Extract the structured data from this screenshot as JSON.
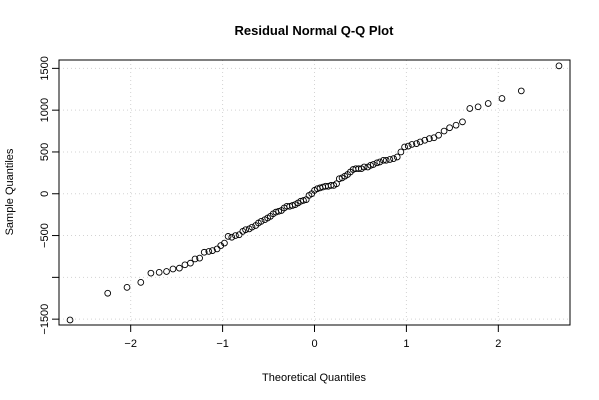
{
  "chart_data": {
    "type": "scatter",
    "title": "Residual Normal Q-Q Plot",
    "xlabel": "Theoretical Quantiles",
    "ylabel": "Sample Quantiles",
    "xlim": [
      -2.78,
      2.78
    ],
    "ylim": [
      -1570,
      1600
    ],
    "xticks": [
      -2,
      -1,
      0,
      1,
      2
    ],
    "xtick_labels": [
      "−2",
      "−1",
      "0",
      "1",
      "2"
    ],
    "yticks": [
      -1500,
      -1000,
      -500,
      0,
      500,
      1000,
      1500
    ],
    "ytick_labels": [
      "−1500",
      "",
      "−500",
      "0",
      "500",
      "1000",
      "1500"
    ],
    "grid": true,
    "series": [
      {
        "points": [
          [
            -2.66,
            -1510
          ],
          [
            -2.25,
            -1190
          ],
          [
            -2.04,
            -1120
          ],
          [
            -1.89,
            -1060
          ],
          [
            -1.78,
            -950
          ],
          [
            -1.69,
            -940
          ],
          [
            -1.61,
            -930
          ],
          [
            -1.54,
            -900
          ],
          [
            -1.47,
            -890
          ],
          [
            -1.41,
            -850
          ],
          [
            -1.35,
            -830
          ],
          [
            -1.3,
            -780
          ],
          [
            -1.25,
            -770
          ],
          [
            -1.2,
            -700
          ],
          [
            -1.15,
            -690
          ],
          [
            -1.11,
            -680
          ],
          [
            -1.06,
            -660
          ],
          [
            -1.02,
            -620
          ],
          [
            -0.98,
            -590
          ],
          [
            -0.94,
            -510
          ],
          [
            -0.9,
            -520
          ],
          [
            -0.86,
            -500
          ],
          [
            -0.82,
            -490
          ],
          [
            -0.78,
            -450
          ],
          [
            -0.75,
            -430
          ],
          [
            -0.71,
            -420
          ],
          [
            -0.68,
            -400
          ],
          [
            -0.64,
            -380
          ],
          [
            -0.61,
            -350
          ],
          [
            -0.58,
            -330
          ],
          [
            -0.54,
            -310
          ],
          [
            -0.51,
            -290
          ],
          [
            -0.48,
            -270
          ],
          [
            -0.45,
            -240
          ],
          [
            -0.42,
            -220
          ],
          [
            -0.39,
            -210
          ],
          [
            -0.36,
            -200
          ],
          [
            -0.33,
            -170
          ],
          [
            -0.3,
            -150
          ],
          [
            -0.27,
            -150
          ],
          [
            -0.24,
            -140
          ],
          [
            -0.21,
            -130
          ],
          [
            -0.18,
            -110
          ],
          [
            -0.15,
            -90
          ],
          [
            -0.12,
            -80
          ],
          [
            -0.09,
            -70
          ],
          [
            -0.06,
            -20
          ],
          [
            -0.03,
            0
          ],
          [
            0.0,
            40
          ],
          [
            0.03,
            60
          ],
          [
            0.06,
            70
          ],
          [
            0.09,
            80
          ],
          [
            0.12,
            90
          ],
          [
            0.15,
            90
          ],
          [
            0.18,
            100
          ],
          [
            0.21,
            100
          ],
          [
            0.24,
            120
          ],
          [
            0.27,
            180
          ],
          [
            0.3,
            190
          ],
          [
            0.33,
            210
          ],
          [
            0.36,
            230
          ],
          [
            0.39,
            260
          ],
          [
            0.42,
            290
          ],
          [
            0.45,
            300
          ],
          [
            0.48,
            300
          ],
          [
            0.51,
            300
          ],
          [
            0.54,
            320
          ],
          [
            0.58,
            320
          ],
          [
            0.61,
            340
          ],
          [
            0.64,
            350
          ],
          [
            0.68,
            370
          ],
          [
            0.71,
            380
          ],
          [
            0.75,
            400
          ],
          [
            0.78,
            400
          ],
          [
            0.82,
            410
          ],
          [
            0.86,
            420
          ],
          [
            0.9,
            440
          ],
          [
            0.94,
            500
          ],
          [
            0.98,
            560
          ],
          [
            1.02,
            570
          ],
          [
            1.06,
            590
          ],
          [
            1.11,
            600
          ],
          [
            1.15,
            620
          ],
          [
            1.2,
            640
          ],
          [
            1.25,
            660
          ],
          [
            1.3,
            670
          ],
          [
            1.35,
            700
          ],
          [
            1.41,
            750
          ],
          [
            1.47,
            790
          ],
          [
            1.54,
            820
          ],
          [
            1.61,
            860
          ],
          [
            1.69,
            1020
          ],
          [
            1.78,
            1040
          ],
          [
            1.89,
            1080
          ],
          [
            2.04,
            1140
          ],
          [
            2.25,
            1230
          ],
          [
            2.66,
            1530
          ]
        ]
      }
    ]
  }
}
